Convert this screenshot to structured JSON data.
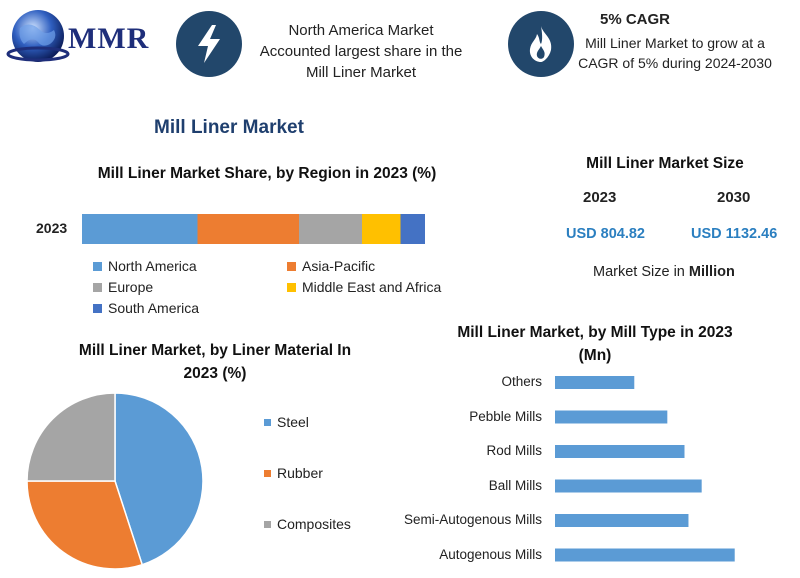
{
  "logo": {
    "text": "MMR"
  },
  "header": {
    "box1": {
      "icon": "lightning-bolt-icon",
      "lines": [
        "North America Market",
        "Accounted largest share in the",
        "Mill Liner Market"
      ]
    },
    "box2": {
      "icon": "flame-icon",
      "title": "5% CAGR",
      "lines": [
        "Mill Liner Market to grow at a",
        "CAGR of 5% during 2024-2030"
      ]
    }
  },
  "main_title": "Mill Liner Market",
  "market_size": {
    "title": "Mill Liner Market Size",
    "year1": "2023",
    "year2": "2030",
    "value1": "USD 804.82",
    "value2": "USD 1132.46",
    "note_prefix": "Market Size in ",
    "note_bold": "Million"
  },
  "chart_data": [
    {
      "type": "bar",
      "orientation": "horizontal-stacked",
      "title": "Mill Liner Market Share, by Region in 2023 (%)",
      "categories": [
        "2023"
      ],
      "series": [
        {
          "name": "North America",
          "values": [
            33
          ],
          "color": "#5b9bd5"
        },
        {
          "name": "Asia-Pacific",
          "values": [
            29
          ],
          "color": "#ed7d31"
        },
        {
          "name": "Europe",
          "values": [
            18
          ],
          "color": "#a5a5a5"
        },
        {
          "name": "Middle East and Africa",
          "values": [
            11
          ],
          "color": "#ffc000"
        },
        {
          "name": "South America",
          "values": [
            7
          ],
          "color": "#4472c4"
        }
      ],
      "legend": "bottom"
    },
    {
      "type": "pie",
      "title_lines": [
        "Mill Liner Market, by Liner Material In",
        "2023 (%)"
      ],
      "labels": [
        "Steel",
        "Rubber",
        "Composites"
      ],
      "values": [
        45,
        30,
        25
      ],
      "colors": [
        "#5b9bd5",
        "#ed7d31",
        "#a5a5a5"
      ],
      "legend": "right"
    },
    {
      "type": "bar",
      "orientation": "horizontal",
      "title_lines": [
        "Mill Liner Market, by Mill Type in 2023",
        "(Mn)"
      ],
      "categories": [
        "Others",
        "Pebble Mills",
        "Rod Mills",
        "Ball Mills",
        "Semi-Autogenous Mills",
        "Autogenous Mills"
      ],
      "values": [
        60,
        85,
        98,
        111,
        101,
        136
      ],
      "xlim": [
        0,
        140
      ],
      "color": "#5b9bd5"
    }
  ]
}
